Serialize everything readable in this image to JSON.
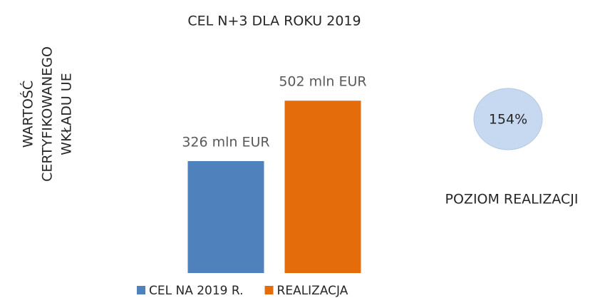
{
  "chart_data": {
    "type": "bar",
    "title": "CEL N+3 DLA ROKU 2019",
    "ylabel": [
      "WARTOŚĆ",
      "CERTYFIKOWANEGO",
      "WKŁADU UE"
    ],
    "categories": [
      null
    ],
    "series": [
      {
        "name": "CEL NA 2019 R.",
        "color": "#4f81bd",
        "values": [
          326
        ],
        "value_labels": [
          "326 mln EUR"
        ]
      },
      {
        "name": "REALIZACJA",
        "color": "#e46c0a",
        "values": [
          502
        ],
        "value_labels": [
          "502 mln EUR"
        ]
      }
    ],
    "ylim": [
      0,
      600
    ],
    "legend": "bottom",
    "annotation": {
      "value": 154,
      "label": "154%",
      "caption": "POZIOM REALIZACJI",
      "color": "#c6d9f1"
    }
  }
}
